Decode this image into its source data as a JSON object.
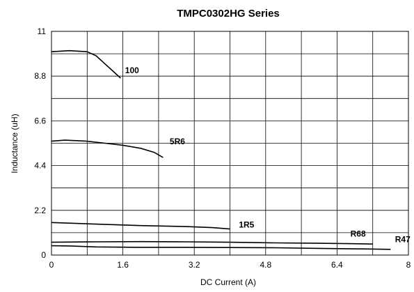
{
  "chart_data": {
    "type": "line",
    "title": "TMPC0302HG Series",
    "xlabel": "DC Current (A)",
    "ylabel": "Inductance (uH)",
    "xlim": [
      0,
      8
    ],
    "ylim": [
      0,
      11
    ],
    "x_ticks": [
      0,
      1.6,
      3.2,
      4.8,
      6.4,
      8
    ],
    "x_tick_labels": [
      "0",
      "1.6",
      "3.2",
      "4.8",
      "6.4",
      "8"
    ],
    "y_ticks": [
      0,
      2.2,
      4.4,
      6.6,
      8.8,
      11
    ],
    "y_tick_labels": [
      "0",
      "2.2",
      "4.4",
      "6.6",
      "8.8",
      "11"
    ],
    "grid": true,
    "line_color": "#000000",
    "series": [
      {
        "name": "100",
        "x": [
          0,
          0.4,
          0.8,
          1.0,
          1.2,
          1.4,
          1.55
        ],
        "y": [
          10,
          10.05,
          10.0,
          9.8,
          9.4,
          9.0,
          8.7
        ]
      },
      {
        "name": "5R6",
        "x": [
          0,
          0.3,
          0.8,
          1.2,
          1.6,
          2.0,
          2.3,
          2.5
        ],
        "y": [
          5.6,
          5.65,
          5.6,
          5.5,
          5.4,
          5.25,
          5.05,
          4.8
        ]
      },
      {
        "name": "1R5",
        "x": [
          0,
          1.0,
          2.0,
          3.0,
          3.6,
          4.0
        ],
        "y": [
          1.6,
          1.52,
          1.45,
          1.4,
          1.35,
          1.28
        ]
      },
      {
        "name": "R68",
        "x": [
          0,
          1.0,
          2.0,
          3.0,
          4.0,
          5.0,
          6.0,
          7.0,
          7.2
        ],
        "y": [
          0.63,
          0.65,
          0.66,
          0.65,
          0.63,
          0.6,
          0.58,
          0.55,
          0.54
        ]
      },
      {
        "name": "R47",
        "x": [
          0,
          0.4,
          1.0,
          2.0,
          3.0,
          4.0,
          5.0,
          6.0,
          7.0,
          7.6
        ],
        "y": [
          0.46,
          0.45,
          0.4,
          0.38,
          0.38,
          0.37,
          0.36,
          0.33,
          0.3,
          0.28
        ]
      }
    ],
    "annotations": [
      {
        "text": "100",
        "x": 1.65,
        "y": 8.95
      },
      {
        "text": "5R6",
        "x": 2.65,
        "y": 5.45
      },
      {
        "text": "1R5",
        "x": 4.2,
        "y": 1.35
      },
      {
        "text": "R68",
        "x": 6.7,
        "y": 0.9
      },
      {
        "text": "R47",
        "x": 7.7,
        "y": 0.64
      }
    ]
  }
}
